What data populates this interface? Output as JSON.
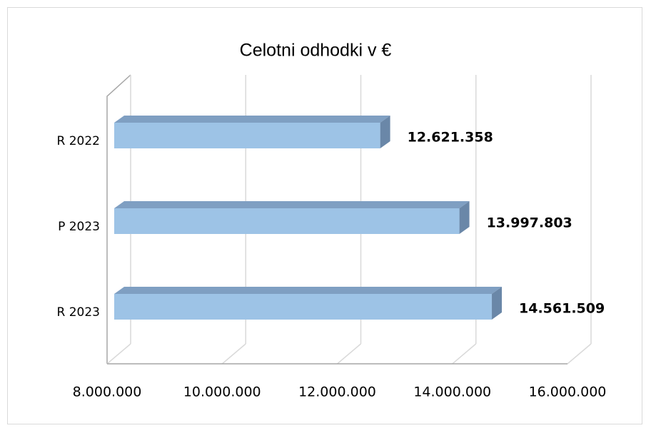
{
  "chart_data": {
    "type": "bar",
    "orientation": "horizontal",
    "title": "Celotni odhodki v €",
    "categories": [
      "R 2022",
      "P 2023",
      "R 2023"
    ],
    "values": [
      12621358,
      13997803,
      14561509
    ],
    "value_labels": [
      "12.621.358",
      "13.997.803",
      "14.561.509"
    ],
    "color": "#9dc3e6",
    "xlim": [
      8000000,
      16000000
    ],
    "xticks": [
      {
        "value": 8000000,
        "label": "8.000.000"
      },
      {
        "value": 10000000,
        "label": "10.000.000"
      },
      {
        "value": 12000000,
        "label": "12.000.000"
      },
      {
        "value": 14000000,
        "label": "14.000.000"
      },
      {
        "value": 16000000,
        "label": "16.000.000"
      }
    ],
    "grid": true
  }
}
